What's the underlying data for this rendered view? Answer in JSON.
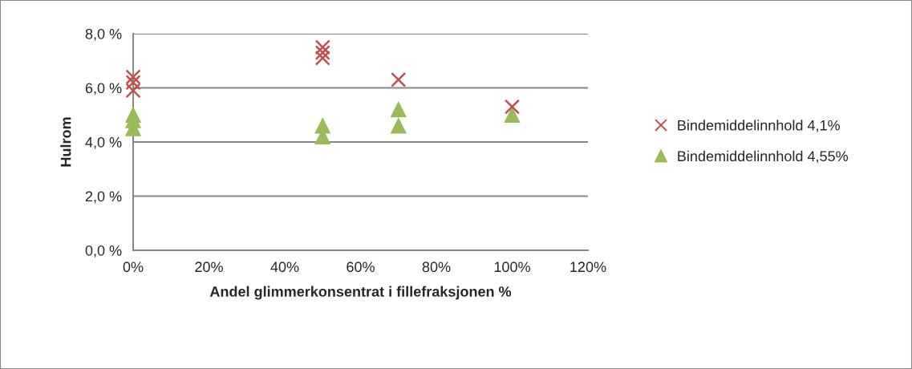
{
  "chart_data": {
    "type": "scatter",
    "xlabel": "Andel glimmerkonsentrat i fillefraksjonen %",
    "ylabel": "Hulrom",
    "series": [
      {
        "name": "Bindemiddelinnhold 4,1%",
        "color": "#c0504d",
        "marker": "cross",
        "x": [
          0,
          0,
          0,
          50,
          50,
          50,
          70,
          100
        ],
        "values": [
          6.4,
          6.2,
          5.9,
          7.5,
          7.3,
          7.1,
          6.3,
          5.3
        ]
      },
      {
        "name": "Bindemiddelinnhold 4,55%",
        "color": "#9bbb59",
        "marker": "triangle",
        "x": [
          0,
          0,
          0,
          50,
          50,
          70,
          70,
          100
        ],
        "values": [
          5.0,
          4.8,
          4.5,
          4.6,
          4.2,
          5.2,
          4.6,
          5.0
        ]
      }
    ],
    "xlim": [
      0,
      120
    ],
    "xticks": [
      {
        "value": 0,
        "label": "0%"
      },
      {
        "value": 20,
        "label": "20%"
      },
      {
        "value": 40,
        "label": "40%"
      },
      {
        "value": 60,
        "label": "60%"
      },
      {
        "value": 80,
        "label": "80%"
      },
      {
        "value": 100,
        "label": "100%"
      },
      {
        "value": 120,
        "label": "120%"
      }
    ],
    "ylim": [
      0,
      8
    ],
    "yticks": [
      {
        "value": 0,
        "label": "0,0 %"
      },
      {
        "value": 2,
        "label": "2,0 %"
      },
      {
        "value": 4,
        "label": "4,0 %"
      },
      {
        "value": 6,
        "label": "6,0 %"
      },
      {
        "value": 8,
        "label": "8,0 %"
      }
    ],
    "grid": "y",
    "legend": "right"
  }
}
